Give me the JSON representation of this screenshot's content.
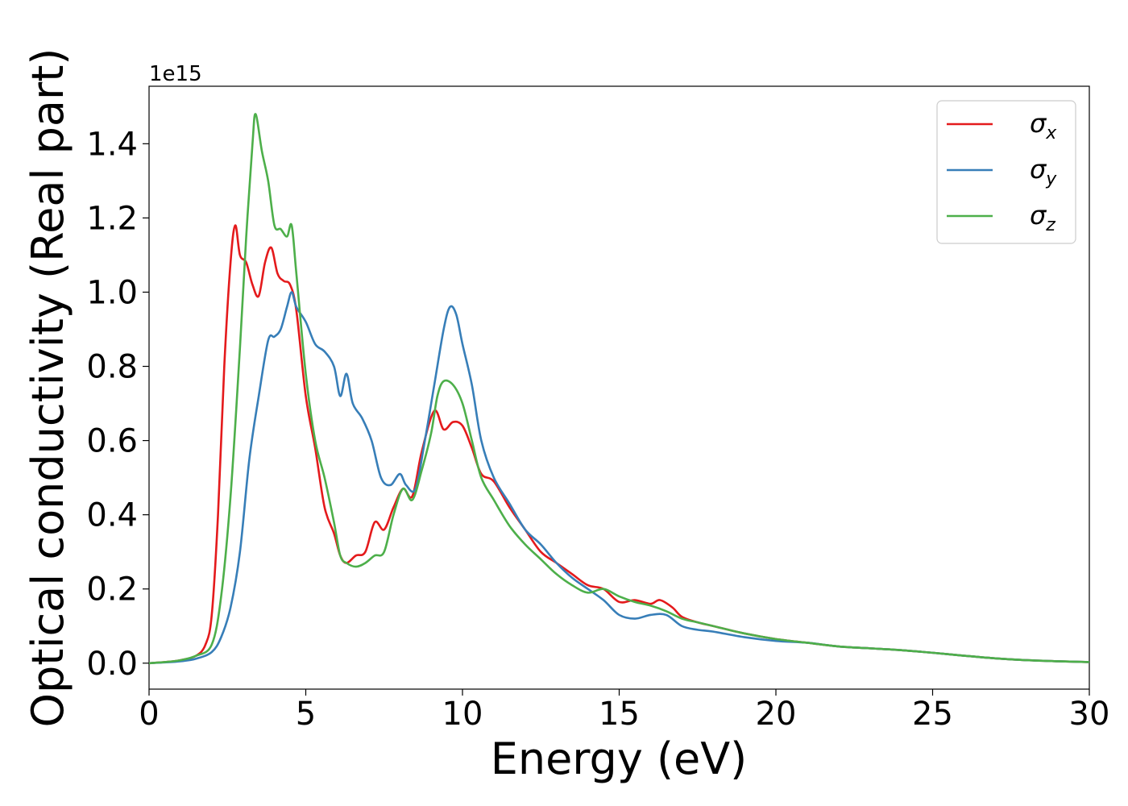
{
  "chart_data": {
    "type": "line",
    "xlabel": "Energy (eV)",
    "ylabel": "Optical conductivity (Real part)",
    "y_offset_label": "1e15",
    "xlim": [
      0,
      30
    ],
    "ylim": [
      -0.07,
      1.555
    ],
    "xticks": [
      0,
      5,
      10,
      15,
      20,
      25,
      30
    ],
    "yticks": [
      0.0,
      0.2,
      0.4,
      0.6,
      0.8,
      1.0,
      1.2,
      1.4
    ],
    "xtick_labels": [
      "0",
      "5",
      "10",
      "15",
      "20",
      "25",
      "30"
    ],
    "ytick_labels": [
      "0.0",
      "0.2",
      "0.4",
      "0.6",
      "0.8",
      "1.0",
      "1.2",
      "1.4"
    ],
    "grid": false,
    "legend_position": "top-right",
    "series": [
      {
        "name": "σ",
        "subscript": "x",
        "color": "#e41a1c",
        "x": [
          0,
          0.5,
          1,
          1.5,
          1.8,
          2,
          2.2,
          2.4,
          2.6,
          2.75,
          2.9,
          3.1,
          3.3,
          3.5,
          3.7,
          3.9,
          4.1,
          4.3,
          4.5,
          4.7,
          5,
          5.3,
          5.6,
          5.9,
          6.1,
          6.3,
          6.6,
          6.9,
          7.2,
          7.5,
          7.8,
          8.1,
          8.4,
          8.7,
          9.1,
          9.4,
          9.7,
          10,
          10.3,
          10.6,
          11,
          11.5,
          12,
          12.5,
          13,
          13.5,
          14,
          14.5,
          15,
          15.5,
          16,
          16.3,
          16.7,
          17,
          17.5,
          18,
          19,
          20,
          21,
          22,
          23,
          24,
          25,
          26,
          27,
          28,
          29,
          30
        ],
        "y": [
          0,
          0.003,
          0.008,
          0.02,
          0.05,
          0.13,
          0.4,
          0.8,
          1.08,
          1.18,
          1.1,
          1.08,
          1.02,
          0.99,
          1.08,
          1.12,
          1.05,
          1.03,
          1.02,
          0.95,
          0.72,
          0.58,
          0.42,
          0.35,
          0.29,
          0.27,
          0.29,
          0.3,
          0.38,
          0.36,
          0.42,
          0.47,
          0.45,
          0.57,
          0.68,
          0.63,
          0.65,
          0.64,
          0.58,
          0.51,
          0.49,
          0.42,
          0.36,
          0.3,
          0.27,
          0.24,
          0.21,
          0.2,
          0.165,
          0.17,
          0.16,
          0.17,
          0.15,
          0.125,
          0.11,
          0.1,
          0.08,
          0.065,
          0.055,
          0.045,
          0.04,
          0.035,
          0.028,
          0.02,
          0.013,
          0.008,
          0.005,
          0.003
        ]
      },
      {
        "name": "σ",
        "subscript": "y",
        "color": "#377eb8",
        "x": [
          0,
          0.5,
          1,
          1.5,
          2,
          2.3,
          2.6,
          2.9,
          3.2,
          3.5,
          3.8,
          4,
          4.2,
          4.4,
          4.55,
          4.7,
          5,
          5.3,
          5.6,
          5.9,
          6.1,
          6.3,
          6.5,
          6.8,
          7.1,
          7.4,
          7.7,
          8,
          8.2,
          8.5,
          8.8,
          9.1,
          9.4,
          9.6,
          9.8,
          10,
          10.3,
          10.6,
          11,
          11.5,
          12,
          12.5,
          13,
          13.5,
          14,
          14.5,
          15,
          15.5,
          16,
          16.5,
          17,
          17.5,
          18,
          19,
          20,
          21,
          22,
          23,
          24,
          25,
          26,
          27,
          28,
          29,
          30
        ],
        "y": [
          0,
          0.002,
          0.005,
          0.012,
          0.03,
          0.07,
          0.15,
          0.3,
          0.55,
          0.72,
          0.87,
          0.88,
          0.9,
          0.96,
          1.0,
          0.96,
          0.92,
          0.86,
          0.84,
          0.8,
          0.72,
          0.78,
          0.7,
          0.66,
          0.6,
          0.5,
          0.48,
          0.51,
          0.48,
          0.47,
          0.6,
          0.75,
          0.9,
          0.96,
          0.94,
          0.86,
          0.75,
          0.6,
          0.5,
          0.43,
          0.36,
          0.32,
          0.27,
          0.23,
          0.2,
          0.17,
          0.13,
          0.12,
          0.13,
          0.13,
          0.1,
          0.09,
          0.085,
          0.07,
          0.06,
          0.055,
          0.045,
          0.04,
          0.035,
          0.028,
          0.02,
          0.013,
          0.008,
          0.005,
          0.003
        ]
      },
      {
        "name": "σ",
        "subscript": "z",
        "color": "#4daf4a",
        "x": [
          0,
          0.5,
          1,
          1.5,
          2,
          2.3,
          2.6,
          2.9,
          3.1,
          3.3,
          3.4,
          3.6,
          3.8,
          4,
          4.2,
          4.4,
          4.55,
          4.7,
          5,
          5.3,
          5.6,
          5.9,
          6.1,
          6.3,
          6.6,
          6.9,
          7.2,
          7.5,
          7.8,
          8.1,
          8.4,
          8.7,
          9,
          9.2,
          9.4,
          9.7,
          10,
          10.3,
          10.6,
          11,
          11.5,
          12,
          12.5,
          13,
          13.5,
          14,
          14.5,
          15,
          15.5,
          16,
          16.5,
          17,
          17.5,
          18,
          19,
          20,
          21,
          22,
          23,
          24,
          25,
          26,
          27,
          28,
          29,
          30
        ],
        "y": [
          0,
          0.003,
          0.008,
          0.02,
          0.05,
          0.18,
          0.45,
          0.85,
          1.15,
          1.4,
          1.48,
          1.38,
          1.3,
          1.18,
          1.17,
          1.15,
          1.18,
          1.05,
          0.78,
          0.6,
          0.5,
          0.38,
          0.29,
          0.27,
          0.26,
          0.27,
          0.29,
          0.3,
          0.4,
          0.47,
          0.44,
          0.52,
          0.62,
          0.72,
          0.76,
          0.75,
          0.7,
          0.6,
          0.5,
          0.44,
          0.37,
          0.32,
          0.28,
          0.24,
          0.21,
          0.19,
          0.2,
          0.18,
          0.165,
          0.155,
          0.14,
          0.12,
          0.11,
          0.1,
          0.08,
          0.065,
          0.055,
          0.045,
          0.04,
          0.035,
          0.028,
          0.02,
          0.013,
          0.008,
          0.005,
          0.003
        ]
      }
    ]
  }
}
